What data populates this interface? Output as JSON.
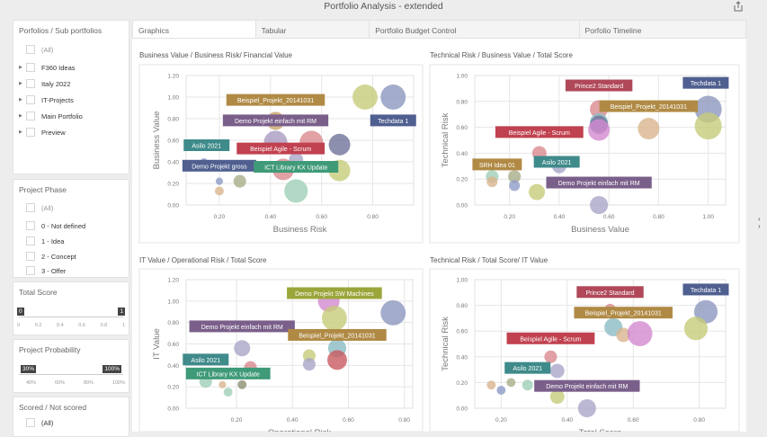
{
  "header": {
    "title": "Portfolio Analysis - extended",
    "share_icon": "share-icon"
  },
  "tabs": [
    {
      "label": "Graphics",
      "active": true
    },
    {
      "label": "Tabular"
    },
    {
      "label": "Portfolio Budget Control"
    },
    {
      "label": "Porfolio Timeline"
    }
  ],
  "filters": {
    "portfolios": {
      "title": "Porfolios / Sub portfolios",
      "all": "(All)",
      "items": [
        "F360 Ideas",
        "Italy 2022",
        "IT-Projects",
        "Main Portfolio",
        "Preview"
      ]
    },
    "phase": {
      "title": "Project Phase",
      "all": "(All)",
      "items": [
        "0 - Not defined",
        "1 - Idea",
        "2 - Concept",
        "3 - Offer"
      ]
    },
    "total_score": {
      "title": "Total Score",
      "min": "0",
      "max": "1",
      "ticks": [
        "0",
        "0.2",
        "0.4",
        "0.6",
        "0.8",
        "1"
      ]
    },
    "probability": {
      "title": "Project Probability",
      "min": "30%",
      "max": "100%",
      "ticks": [
        "40%",
        "60%",
        "80%",
        "100%"
      ]
    },
    "scored": {
      "title": "Scored / Not scored",
      "all": "(All)"
    }
  },
  "chart_data": [
    {
      "type": "scatter",
      "title": "Business Value / Business Risk/ Financial Value",
      "xlabel": "Business Risk",
      "ylabel": "Business Value",
      "xlim": [
        0.07,
        0.96
      ],
      "ylim": [
        0,
        1.2
      ],
      "xticks": [
        "0.20",
        "0.40",
        "0.60",
        "0.80"
      ],
      "yticks": [
        "0.00",
        "0.20",
        "0.40",
        "0.60",
        "0.80",
        "1.00",
        "1.20"
      ],
      "points": [
        {
          "x": 0.77,
          "y": 1.0,
          "size": 0.93,
          "color": "#c5cc7a"
        },
        {
          "x": 0.88,
          "y": 1.0,
          "size": 0.93,
          "color": "#8d97bf"
        },
        {
          "x": 0.42,
          "y": 0.78,
          "size": 0.67,
          "color": "#c9a56a"
        },
        {
          "x": 0.42,
          "y": 0.58,
          "size": 0.87,
          "color": "#a99bc0"
        },
        {
          "x": 0.56,
          "y": 0.58,
          "size": 0.87,
          "color": "#d98a8f"
        },
        {
          "x": 0.67,
          "y": 0.56,
          "size": 0.8,
          "color": "#6f7399"
        },
        {
          "x": 0.5,
          "y": 0.42,
          "size": 0.53,
          "color": "#a9a6c8"
        },
        {
          "x": 0.45,
          "y": 0.33,
          "size": 0.8,
          "color": "#d98a8f"
        },
        {
          "x": 0.67,
          "y": 0.32,
          "size": 0.8,
          "color": "#c5cc7a"
        },
        {
          "x": 0.5,
          "y": 0.13,
          "size": 0.87,
          "color": "#9fcfb8"
        },
        {
          "x": 0.28,
          "y": 0.22,
          "size": 0.47,
          "color": "#a7ae8a"
        },
        {
          "x": 0.2,
          "y": 0.22,
          "size": 0.27,
          "color": "#8d9bc7"
        },
        {
          "x": 0.2,
          "y": 0.13,
          "size": 0.33,
          "color": "#d9b58f"
        },
        {
          "x": 0.14,
          "y": 0.4,
          "size": 0.27,
          "color": "#8d9bc7"
        }
      ],
      "labels": [
        {
          "text": "Beispiel_Projekt_20141031",
          "x": 0.42,
          "y": 0.97,
          "color": "#b08a45"
        },
        {
          "text": "Demo Projekt einfach mit RM",
          "x": 0.42,
          "y": 0.78,
          "color": "#7a5f8a"
        },
        {
          "text": "Techdata 1",
          "x": 0.88,
          "y": 0.78,
          "color": "#4f5f8f"
        },
        {
          "text": "Asilo 2021",
          "x": 0.15,
          "y": 0.55,
          "color": "#3f8a8a"
        },
        {
          "text": "Beispiel Agile - Scrum",
          "x": 0.44,
          "y": 0.52,
          "color": "#c0414f"
        },
        {
          "text": "Demo Projekt gross",
          "x": 0.2,
          "y": 0.36,
          "color": "#4f5f8f"
        },
        {
          "text": "ICT Library KX Update",
          "x": 0.5,
          "y": 0.35,
          "color": "#3f9a78"
        }
      ]
    },
    {
      "type": "scatter",
      "title": "Technical Risk / Business Value / Total Score",
      "xlabel": "Business Value",
      "ylabel": "Technical Risk",
      "xlim": [
        0.06,
        1.07
      ],
      "ylim": [
        0,
        1.0
      ],
      "xticks": [
        "0.20",
        "0.40",
        "0.60",
        "0.80",
        "1.00"
      ],
      "yticks": [
        "0.00",
        "0.20",
        "0.40",
        "0.60",
        "0.80",
        "1.00"
      ],
      "points": [
        {
          "x": 1.0,
          "y": 0.74,
          "size": 1.0,
          "color": "#8d97bf"
        },
        {
          "x": 1.0,
          "y": 0.61,
          "size": 1.0,
          "color": "#c5cc7a"
        },
        {
          "x": 0.76,
          "y": 0.59,
          "size": 0.8,
          "color": "#d9b58f"
        },
        {
          "x": 0.56,
          "y": 0.74,
          "size": 0.67,
          "color": "#d98a8f"
        },
        {
          "x": 0.56,
          "y": 0.64,
          "size": 0.67,
          "color": "#8bbcc4"
        },
        {
          "x": 0.56,
          "y": 0.62,
          "size": 0.67,
          "color": "#6f7399"
        },
        {
          "x": 0.56,
          "y": 0.58,
          "size": 0.8,
          "color": "#d38ad0"
        },
        {
          "x": 0.32,
          "y": 0.4,
          "size": 0.53,
          "color": "#d98a8f"
        },
        {
          "x": 0.4,
          "y": 0.3,
          "size": 0.53,
          "color": "#a9a6c8"
        },
        {
          "x": 0.13,
          "y": 0.22,
          "size": 0.47,
          "color": "#9fcfb8"
        },
        {
          "x": 0.13,
          "y": 0.18,
          "size": 0.4,
          "color": "#d9b58f"
        },
        {
          "x": 0.22,
          "y": 0.22,
          "size": 0.47,
          "color": "#a7ae8a"
        },
        {
          "x": 0.22,
          "y": 0.15,
          "size": 0.4,
          "color": "#8d9bc7"
        },
        {
          "x": 0.31,
          "y": 0.1,
          "size": 0.6,
          "color": "#c5cc7a"
        },
        {
          "x": 0.56,
          "y": 0.0,
          "size": 0.67,
          "color": "#a9a6c8"
        }
      ],
      "labels": [
        {
          "text": "Prince2 Standard",
          "x": 0.56,
          "y": 0.92,
          "color": "#b0485a"
        },
        {
          "text": "Techdata 1",
          "x": 0.99,
          "y": 0.94,
          "color": "#4f5f8f"
        },
        {
          "text": "Beispiel_Projekt_20141031",
          "x": 0.76,
          "y": 0.76,
          "color": "#b08a45"
        },
        {
          "text": "Beispiel Agile - Scrum",
          "x": 0.32,
          "y": 0.56,
          "color": "#c0414f"
        },
        {
          "text": "SRH Idea 01",
          "x": 0.15,
          "y": 0.31,
          "color": "#b08a45"
        },
        {
          "text": "Asilo 2021",
          "x": 0.39,
          "y": 0.33,
          "color": "#3f8a8a"
        },
        {
          "text": "Demo Projekt einfach mit RM",
          "x": 0.56,
          "y": 0.17,
          "color": "#7a5f8a"
        }
      ]
    },
    {
      "type": "scatter",
      "title": "IT Value / Operational Risk / Total Score",
      "xlabel": "Operational Risk",
      "ylabel": "IT Value",
      "xlim": [
        0.02,
        0.83
      ],
      "ylim": [
        0,
        1.2
      ],
      "xticks": [
        "0.20",
        "0.40",
        "0.60",
        "0.80"
      ],
      "yticks": [
        "0.00",
        "0.20",
        "0.40",
        "0.60",
        "0.80",
        "1.00",
        "1.20"
      ],
      "points": [
        {
          "x": 0.53,
          "y": 1.0,
          "size": 0.8,
          "color": "#d38ad0"
        },
        {
          "x": 0.55,
          "y": 0.84,
          "size": 0.93,
          "color": "#c5cc7a"
        },
        {
          "x": 0.76,
          "y": 0.89,
          "size": 0.93,
          "color": "#8d97bf"
        },
        {
          "x": 0.22,
          "y": 0.56,
          "size": 0.6,
          "color": "#a9a6c8"
        },
        {
          "x": 0.56,
          "y": 0.56,
          "size": 0.67,
          "color": "#8bbcc4"
        },
        {
          "x": 0.56,
          "y": 0.45,
          "size": 0.73,
          "color": "#c95a5f"
        },
        {
          "x": 0.46,
          "y": 0.49,
          "size": 0.47,
          "color": "#c5cc7a"
        },
        {
          "x": 0.46,
          "y": 0.41,
          "size": 0.47,
          "color": "#a9a6c8"
        },
        {
          "x": 0.25,
          "y": 0.38,
          "size": 0.47,
          "color": "#d98a8f"
        },
        {
          "x": 0.09,
          "y": 0.25,
          "size": 0.47,
          "color": "#9fcfb8"
        },
        {
          "x": 0.15,
          "y": 0.22,
          "size": 0.27,
          "color": "#d9b58f"
        },
        {
          "x": 0.22,
          "y": 0.22,
          "size": 0.33,
          "color": "#8c8f70"
        },
        {
          "x": 0.17,
          "y": 0.15,
          "size": 0.33,
          "color": "#9fcfb8"
        }
      ],
      "labels": [
        {
          "text": "Demo Projekt SW Machines",
          "x": 0.55,
          "y": 1.07,
          "color": "#9aa63a"
        },
        {
          "text": "Demo Projekt einfach mit RM",
          "x": 0.22,
          "y": 0.76,
          "color": "#7a5f8a"
        },
        {
          "text": "Beispiel_Projekt_20141031",
          "x": 0.56,
          "y": 0.68,
          "color": "#b08a45"
        },
        {
          "text": "Asilo 2021",
          "x": 0.09,
          "y": 0.45,
          "color": "#3f8a8a"
        },
        {
          "text": "ICT Library KX Update",
          "x": 0.17,
          "y": 0.32,
          "color": "#3f9a78"
        }
      ]
    },
    {
      "type": "scatter",
      "title": "Technical Risk / Total Score/ IT Value",
      "xlabel": "Total Score",
      "ylabel": "Technical Risk",
      "xlim": [
        0.12,
        0.88
      ],
      "ylim": [
        0,
        1.0
      ],
      "xticks": [
        "0.20",
        "0.40",
        "0.60",
        "0.80"
      ],
      "yticks": [
        "0.00",
        "0.20",
        "0.40",
        "0.60",
        "0.80",
        "1.00"
      ],
      "points": [
        {
          "x": 0.82,
          "y": 0.75,
          "size": 0.87,
          "color": "#8d97bf"
        },
        {
          "x": 0.79,
          "y": 0.62,
          "size": 0.87,
          "color": "#c5cc7a"
        },
        {
          "x": 0.53,
          "y": 0.77,
          "size": 0.4,
          "color": "#d98a8f"
        },
        {
          "x": 0.54,
          "y": 0.63,
          "size": 0.67,
          "color": "#8bbcc4"
        },
        {
          "x": 0.57,
          "y": 0.57,
          "size": 0.53,
          "color": "#d9b58f"
        },
        {
          "x": 0.62,
          "y": 0.58,
          "size": 0.93,
          "color": "#d38ad0"
        },
        {
          "x": 0.35,
          "y": 0.4,
          "size": 0.47,
          "color": "#d98a8f"
        },
        {
          "x": 0.37,
          "y": 0.29,
          "size": 0.53,
          "color": "#a9a6c8"
        },
        {
          "x": 0.17,
          "y": 0.18,
          "size": 0.33,
          "color": "#d9b58f"
        },
        {
          "x": 0.23,
          "y": 0.2,
          "size": 0.33,
          "color": "#a7ae8a"
        },
        {
          "x": 0.2,
          "y": 0.14,
          "size": 0.33,
          "color": "#8d9bc7"
        },
        {
          "x": 0.28,
          "y": 0.18,
          "size": 0.4,
          "color": "#9fcfb8"
        },
        {
          "x": 0.37,
          "y": 0.09,
          "size": 0.53,
          "color": "#c5cc7a"
        },
        {
          "x": 0.46,
          "y": 0.0,
          "size": 0.67,
          "color": "#a9a6c8"
        }
      ],
      "labels": [
        {
          "text": "Techdata 1",
          "x": 0.82,
          "y": 0.92,
          "color": "#4f5f8f"
        },
        {
          "text": "Prince2 Standard",
          "x": 0.53,
          "y": 0.9,
          "color": "#b0485a"
        },
        {
          "text": "Beispiel_Projekt_20141031",
          "x": 0.57,
          "y": 0.74,
          "color": "#b08a45"
        },
        {
          "text": "Beispiel Agile - Scrum",
          "x": 0.35,
          "y": 0.54,
          "color": "#c0414f"
        },
        {
          "text": "Asilo 2021",
          "x": 0.28,
          "y": 0.31,
          "color": "#3f8a8a"
        },
        {
          "text": "Demo Projekt einfach mit RM",
          "x": 0.46,
          "y": 0.17,
          "color": "#7a5f8a"
        }
      ]
    }
  ]
}
